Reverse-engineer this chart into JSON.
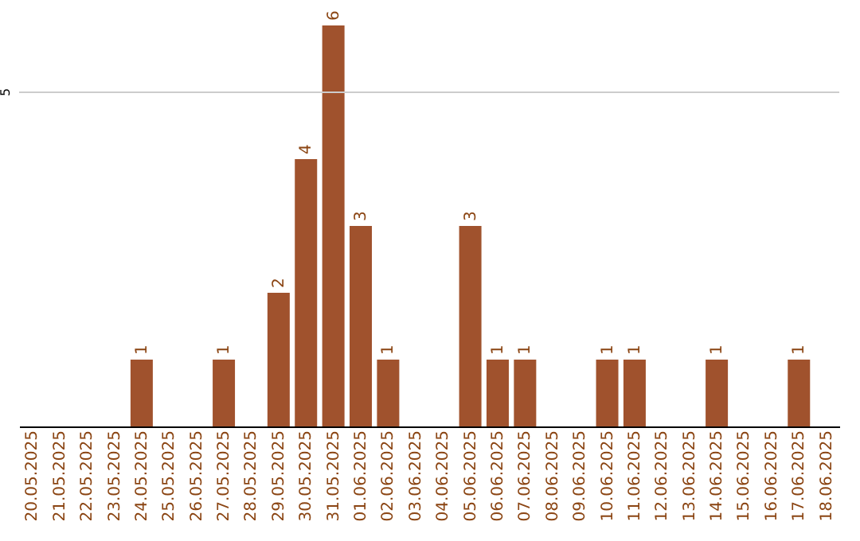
{
  "chart_data": {
    "type": "bar",
    "categories": [
      "20.05.2025",
      "21.05.2025",
      "22.05.2025",
      "23.05.2025",
      "24.05.2025",
      "25.05.2025",
      "26.05.2025",
      "27.05.2025",
      "28.05.2025",
      "29.05.2025",
      "30.05.2025",
      "31.05.2025",
      "01.06.2025",
      "02.06.2025",
      "03.06.2025",
      "04.06.2025",
      "05.06.2025",
      "06.06.2025",
      "07.06.2025",
      "08.06.2025",
      "09.06.2025",
      "10.06.2025",
      "11.06.2025",
      "12.06.2025",
      "13.06.2025",
      "14.06.2025",
      "15.06.2025",
      "16.06.2025",
      "17.06.2025",
      "18.06.2025"
    ],
    "values": [
      0,
      0,
      0,
      0,
      1,
      0,
      0,
      1,
      0,
      2,
      4,
      6,
      3,
      1,
      0,
      0,
      3,
      1,
      1,
      0,
      0,
      1,
      1,
      0,
      0,
      1,
      0,
      0,
      1,
      0
    ],
    "value_labels": [
      null,
      null,
      null,
      null,
      "1",
      null,
      null,
      "1",
      null,
      "2",
      "4",
      "6",
      "3",
      "1",
      null,
      null,
      "3",
      "1",
      "1",
      null,
      null,
      "1",
      "1",
      null,
      null,
      "1",
      null,
      null,
      "1",
      null
    ],
    "color": "#a0522d",
    "ref_lines": [
      {
        "axis": "y",
        "value": 5,
        "label": "5",
        "color": "#cccccc"
      }
    ]
  }
}
